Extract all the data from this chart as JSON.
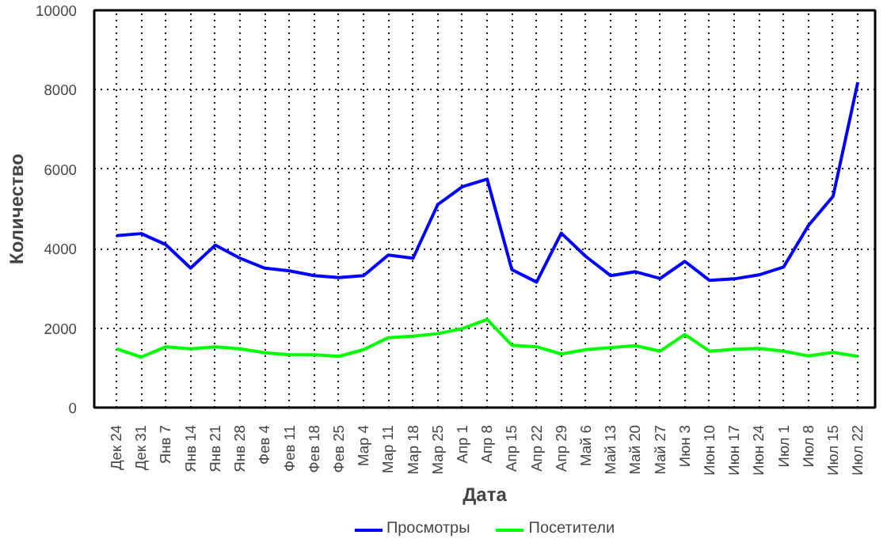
{
  "chart_data": {
    "type": "line",
    "xlabel": "Дата",
    "ylabel": "Количество",
    "categories": [
      "Дек 24",
      "Дек 31",
      "Янв 7",
      "Янв 14",
      "Янв 21",
      "Янв 28",
      "Фев 4",
      "Фев 11",
      "Фев 18",
      "Фев 25",
      "Мар 4",
      "Мар 11",
      "Мар 18",
      "Мар 25",
      "Апр 1",
      "Апр 8",
      "Апр 15",
      "Апр 22",
      "Апр 29",
      "Май 6",
      "Май 13",
      "Май 20",
      "Май 27",
      "Июн 3",
      "Июн 10",
      "Июн 17",
      "Июн 24",
      "Июл 1",
      "Июл 8",
      "Июл 15",
      "Июл 22"
    ],
    "series": [
      {
        "name": "Просмотры",
        "color": "#0000ff",
        "values": [
          4330,
          4380,
          4100,
          3510,
          4090,
          3760,
          3510,
          3440,
          3320,
          3270,
          3320,
          3840,
          3760,
          5110,
          5560,
          5750,
          3470,
          3160,
          4390,
          3800,
          3320,
          3420,
          3250,
          3680,
          3200,
          3240,
          3340,
          3540,
          4580,
          5320,
          8190
        ]
      },
      {
        "name": "Посетители",
        "color": "#00ff00",
        "values": [
          1480,
          1270,
          1530,
          1480,
          1530,
          1480,
          1380,
          1330,
          1330,
          1290,
          1460,
          1760,
          1800,
          1860,
          1990,
          2220,
          1570,
          1530,
          1350,
          1460,
          1510,
          1560,
          1420,
          1840,
          1420,
          1470,
          1490,
          1420,
          1300,
          1390,
          1290
        ]
      }
    ],
    "ylim": [
      0,
      10000
    ],
    "yticks": [
      0,
      2000,
      4000,
      6000,
      8000,
      10000
    ],
    "grid": true,
    "legend": "bottom",
    "marker": "none",
    "line_style": "solid"
  }
}
